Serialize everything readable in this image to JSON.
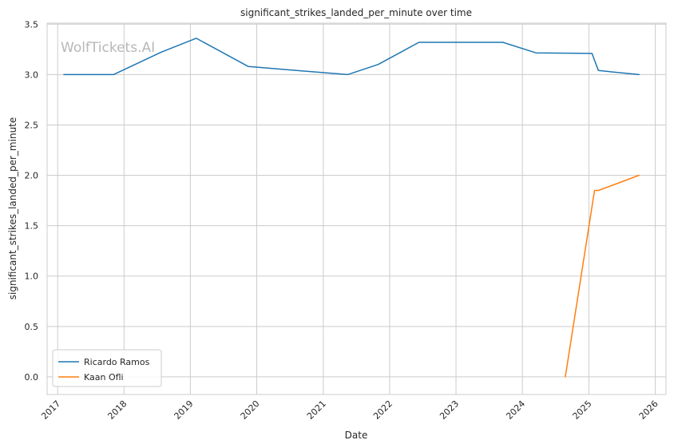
{
  "chart_data": {
    "type": "line",
    "title": "significant_strikes_landed_per_minute over time",
    "xlabel": "Date",
    "ylabel": "significant_strikes_landed_per_minute",
    "xlim": [
      "2016-11-04",
      "2026-03-01"
    ],
    "ylim": [
      -0.175,
      3.51
    ],
    "x_ticks": [
      "2017",
      "2018",
      "2019",
      "2020",
      "2021",
      "2022",
      "2023",
      "2024",
      "2025",
      "2026"
    ],
    "y_ticks": [
      "0.0",
      "0.5",
      "1.0",
      "1.5",
      "2.0",
      "2.5",
      "3.0",
      "3.5"
    ],
    "grid": true,
    "legend_position": "lower-left",
    "watermark": "WolfTickets.AI",
    "series": [
      {
        "name": "Ricardo Ramos",
        "color": "#1f77b4",
        "points": [
          {
            "x": "2017-02-04",
            "y": 3.0
          },
          {
            "x": "2017-11-04",
            "y": 3.0
          },
          {
            "x": "2018-07-22",
            "y": 3.22
          },
          {
            "x": "2019-02-02",
            "y": 3.36
          },
          {
            "x": "2019-11-16",
            "y": 3.08
          },
          {
            "x": "2021-05-15",
            "y": 3.0
          },
          {
            "x": "2021-10-30",
            "y": 3.1
          },
          {
            "x": "2022-06-11",
            "y": 3.32
          },
          {
            "x": "2023-09-16",
            "y": 3.32
          },
          {
            "x": "2024-03-16",
            "y": 3.215
          },
          {
            "x": "2025-01-18",
            "y": 3.21
          },
          {
            "x": "2025-02-22",
            "y": 3.04
          },
          {
            "x": "2025-10-04",
            "y": 3.0
          }
        ]
      },
      {
        "name": "Kaan Ofli",
        "color": "#ff7f0e",
        "points": [
          {
            "x": "2024-08-24",
            "y": 0.0
          },
          {
            "x": "2025-02-01",
            "y": 1.85
          },
          {
            "x": "2025-02-22",
            "y": 1.85
          },
          {
            "x": "2025-10-04",
            "y": 2.0
          }
        ]
      }
    ]
  }
}
